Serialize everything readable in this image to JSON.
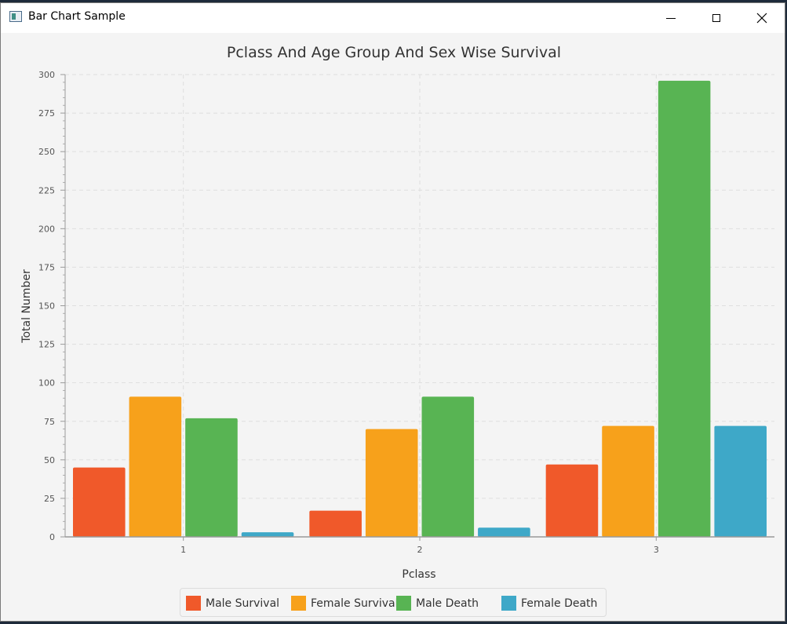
{
  "window": {
    "title": "Bar Chart Sample"
  },
  "colors": {
    "series": [
      "#f0592a",
      "#f7a11b",
      "#58b453",
      "#3ea8c8"
    ]
  },
  "chart_data": {
    "type": "bar",
    "title": "Pclass And Age Group And Sex Wise Survival",
    "xlabel": "Pclass",
    "ylabel": "Total Number",
    "categories": [
      "1",
      "2",
      "3"
    ],
    "ylim": [
      0,
      300
    ],
    "yticks": [
      "0",
      "25",
      "50",
      "75",
      "100",
      "125",
      "150",
      "175",
      "200",
      "225",
      "250",
      "275",
      "300"
    ],
    "grid": true,
    "legend_position": "bottom",
    "series": [
      {
        "name": "Male Survival",
        "values": [
          45,
          17,
          47
        ]
      },
      {
        "name": "Female Survival",
        "values": [
          91,
          70,
          72
        ]
      },
      {
        "name": "Male Death",
        "values": [
          77,
          91,
          296
        ]
      },
      {
        "name": "Female Death",
        "values": [
          3,
          6,
          72
        ]
      }
    ]
  }
}
